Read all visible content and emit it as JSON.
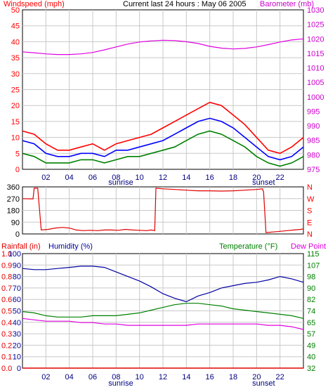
{
  "header": {
    "left_label": "Windspeed (mph)",
    "center_label": "Current last 24 hours : May 06 2005",
    "right_label": "Barometer (mb)"
  },
  "panel3_header": {
    "rain_label": "Rainfall (in)",
    "humidity_label": "Humidity (%)",
    "temperature_label": "Temperature (°F)",
    "dewpoint_label": "Dew Point"
  },
  "time_axis": {
    "labels": [
      "02",
      "04",
      "06",
      "08",
      "10",
      "12",
      "14",
      "16",
      "18",
      "20",
      "22"
    ],
    "sunrise_label": "sunrise",
    "sunset_label": "sunset",
    "sunrise_hour": 8.4,
    "sunset_hour": 20.6,
    "hours_span": 24
  },
  "colors": {
    "wind_max": "#ff0000",
    "wind_mid": "#0000ff",
    "wind_avg": "#008000",
    "barometer": "#e000e0",
    "direction": "#e00000",
    "humidity": "#0000a0",
    "temperature": "#008000",
    "dewpoint": "#e000e0",
    "rain": "#e00000",
    "grid": "#c8c8c8",
    "axis_left": "#ff0000",
    "axis_right": "#cc00cc",
    "axis_humidity": "#0000a0",
    "axis_temp": "#008000"
  },
  "chart_data": [
    {
      "type": "line",
      "title": "Current last 24 hours : May 06 2005",
      "ylabel": "Windspeed (mph)",
      "y2label": "Barometer (mb)",
      "ylim": [
        0,
        50
      ],
      "y2lim": [
        975,
        1030
      ],
      "y_ticks": [
        "0",
        "5",
        "10",
        "15",
        "20",
        "25",
        "30",
        "35",
        "40",
        "45",
        "50"
      ],
      "y2_ticks": [
        "975",
        "980",
        "985",
        "990",
        "995",
        "1000",
        "1005",
        "1010",
        "1015",
        "1020",
        "1025",
        "1030"
      ],
      "series": [
        {
          "name": "Windspeed",
          "x": [
            0,
            1,
            2,
            3,
            4,
            5,
            6,
            7,
            8,
            9,
            10,
            11,
            12,
            13,
            14,
            15,
            16,
            17,
            18,
            19,
            20,
            21,
            22,
            23,
            24
          ],
          "values": [
            12,
            11,
            8,
            6,
            6,
            7,
            8,
            6,
            8,
            9,
            10,
            11,
            13,
            15,
            17,
            19,
            21,
            20,
            17,
            14,
            10,
            6,
            5,
            7,
            10
          ]
        },
        {
          "name": "Windspeed",
          "x": [
            0,
            1,
            2,
            3,
            4,
            5,
            6,
            7,
            8,
            9,
            10,
            11,
            12,
            13,
            14,
            15,
            16,
            17,
            18,
            19,
            20,
            21,
            22,
            23,
            24
          ],
          "values": [
            9,
            8,
            5,
            4,
            4,
            5,
            5,
            4,
            6,
            6,
            7,
            8,
            9,
            11,
            13,
            15,
            16,
            15,
            13,
            10,
            7,
            4,
            3,
            4,
            7
          ]
        },
        {
          "name": "Windspeed",
          "x": [
            0,
            1,
            2,
            3,
            4,
            5,
            6,
            7,
            8,
            9,
            10,
            11,
            12,
            13,
            14,
            15,
            16,
            17,
            18,
            19,
            20,
            21,
            22,
            23,
            24
          ],
          "values": [
            5,
            4,
            2,
            2,
            2,
            3,
            3,
            2,
            3,
            4,
            4,
            5,
            6,
            7,
            9,
            11,
            12,
            11,
            9,
            7,
            4,
            2,
            1,
            2,
            4
          ]
        },
        {
          "name": "Barometer",
          "x": [
            0,
            1,
            2,
            3,
            4,
            5,
            6,
            7,
            8,
            9,
            10,
            11,
            12,
            13,
            14,
            15,
            16,
            17,
            18,
            19,
            20,
            21,
            22,
            23,
            24
          ],
          "values": [
            1015.5,
            1015.2,
            1014.8,
            1014.6,
            1014.6,
            1014.8,
            1015.3,
            1016.2,
            1017.2,
            1018.2,
            1018.9,
            1019.3,
            1019.5,
            1019.4,
            1019.0,
            1018.4,
            1017.4,
            1016.8,
            1016.5,
            1016.7,
            1017.2,
            1018.0,
            1018.9,
            1019.6,
            1020.0
          ]
        }
      ]
    },
    {
      "type": "line",
      "ylabel": "Wind direction",
      "ylim": [
        0,
        360
      ],
      "y_ticks": [
        "0",
        "90",
        "180",
        "270",
        "360"
      ],
      "y2_ticks": [
        "N",
        "E",
        "S",
        "W",
        "N"
      ],
      "series": [
        {
          "name": "Wind direction",
          "x": [
            0,
            0.9,
            1.0,
            1.3,
            1.6,
            2.2,
            2.8,
            3.4,
            4.0,
            4.6,
            5.2,
            5.8,
            6.4,
            7.0,
            7.6,
            8.2,
            8.8,
            9.4,
            10.0,
            10.6,
            11.0,
            11.3,
            11.4,
            12.0,
            13.0,
            14.0,
            15.0,
            16.0,
            17.0,
            18.0,
            19.0,
            20.0,
            20.5,
            20.6,
            20.8,
            21.4,
            22.0,
            22.6,
            23.2,
            23.8,
            24.0
          ],
          "values": [
            270,
            268,
            350,
            350,
            30,
            35,
            45,
            50,
            45,
            30,
            25,
            28,
            25,
            30,
            30,
            28,
            35,
            30,
            28,
            25,
            30,
            25,
            350,
            345,
            340,
            335,
            330,
            330,
            328,
            330,
            335,
            340,
            345,
            320,
            10,
            15,
            20,
            25,
            30,
            35,
            40
          ]
        }
      ]
    },
    {
      "type": "line",
      "y_ticks_rain": [
        "0.0",
        "0.1",
        "0.2",
        "0.3",
        "0.4",
        "0.5",
        "0.6",
        "0.7",
        "0.8",
        "0.9",
        "1.0"
      ],
      "y_ticks_humidity": [
        "0",
        "10",
        "20",
        "30",
        "40",
        "50",
        "60",
        "70",
        "80",
        "90",
        "100"
      ],
      "y2_ticks": [
        "32",
        "40",
        "49",
        "57",
        "65",
        "74",
        "82",
        "90",
        "98",
        "107",
        "115"
      ],
      "ylim": [
        0,
        100
      ],
      "y2lim": [
        32,
        115
      ],
      "series": [
        {
          "name": "Humidity",
          "x": [
            0,
            1,
            2,
            3,
            4,
            5,
            6,
            7,
            8,
            9,
            10,
            11,
            12,
            13,
            14,
            15,
            16,
            17,
            18,
            19,
            20,
            21,
            22,
            23,
            24
          ],
          "values": [
            87,
            86,
            86,
            87,
            88,
            89,
            89,
            88,
            84,
            80,
            76,
            71,
            65,
            61,
            58,
            63,
            66,
            70,
            72,
            74,
            75,
            77,
            80,
            78,
            75
          ]
        },
        {
          "name": "Temperature (°F)",
          "x": [
            0,
            1,
            2,
            3,
            4,
            5,
            6,
            7,
            8,
            9,
            10,
            11,
            12,
            13,
            14,
            15,
            16,
            17,
            18,
            19,
            20,
            21,
            22,
            23,
            24
          ],
          "values": [
            73,
            72,
            70,
            69,
            69,
            69,
            70,
            70,
            70,
            71,
            72,
            74,
            76,
            78,
            79,
            79,
            78,
            77,
            75,
            74,
            73,
            72,
            71,
            70,
            68
          ]
        },
        {
          "name": "Dew Point",
          "x": [
            0,
            1,
            2,
            3,
            4,
            5,
            6,
            7,
            8,
            9,
            10,
            11,
            12,
            13,
            14,
            15,
            16,
            17,
            18,
            19,
            20,
            21,
            22,
            23,
            24
          ],
          "values": [
            68,
            67,
            66,
            66,
            66,
            65,
            65,
            64,
            64,
            63,
            63,
            63,
            63,
            63,
            63,
            64,
            64,
            64,
            64,
            64,
            64,
            63,
            63,
            62,
            60
          ]
        },
        {
          "name": "Rainfall (in)",
          "x": [
            0,
            24
          ],
          "values": [
            0,
            0
          ]
        }
      ]
    }
  ]
}
